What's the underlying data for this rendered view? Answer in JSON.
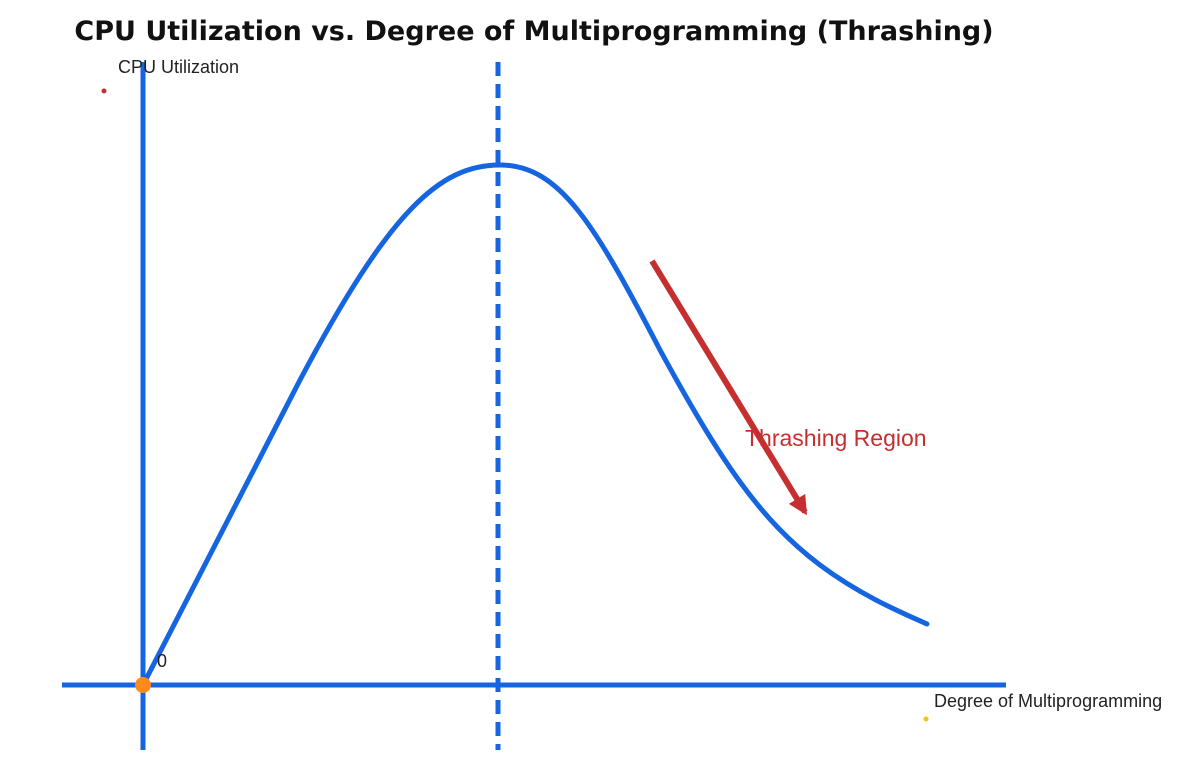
{
  "title": "CPU Utilization vs. Degree of Multiprogramming (Thrashing)",
  "y_axis_label": "CPU Utilization",
  "x_axis_label": "Degree of Multiprogramming",
  "origin_label": "0",
  "annotation": "Thrashing Region",
  "colors": {
    "axis": "#1565e0",
    "curve": "#1565e0",
    "optimum_line": "#1565e0",
    "annotation": "#c62f30",
    "origin_marker": "#ff8a1c",
    "y_dot": "#c62f30",
    "x_dot": "#f2c21b"
  }
}
